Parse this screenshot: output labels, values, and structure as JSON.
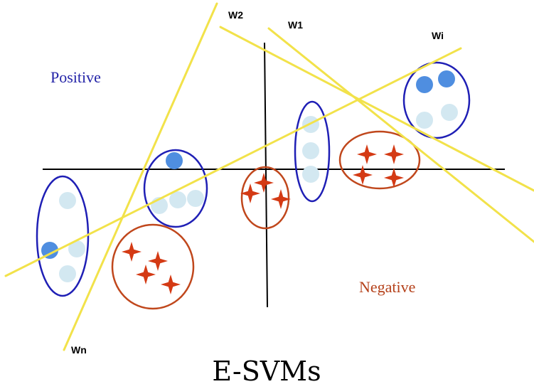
{
  "colors": {
    "axis": "#000000",
    "hyperplane": "#f2e24a",
    "positive_ellipse": "#1f1fb5",
    "negative_ellipse": "#c0471c",
    "positive_point": "#4f8ee0",
    "unlabeled_point": "#d3e8f1",
    "negative_star": "#d43a14",
    "positive_text": "#2424a8",
    "negative_text": "#b5411a"
  },
  "labels": {
    "positive": "Positive",
    "negative": "Negative",
    "w1": "W1",
    "w2": "W2",
    "wi": "Wi",
    "wn": "Wn"
  },
  "caption": "E-SVMs"
}
